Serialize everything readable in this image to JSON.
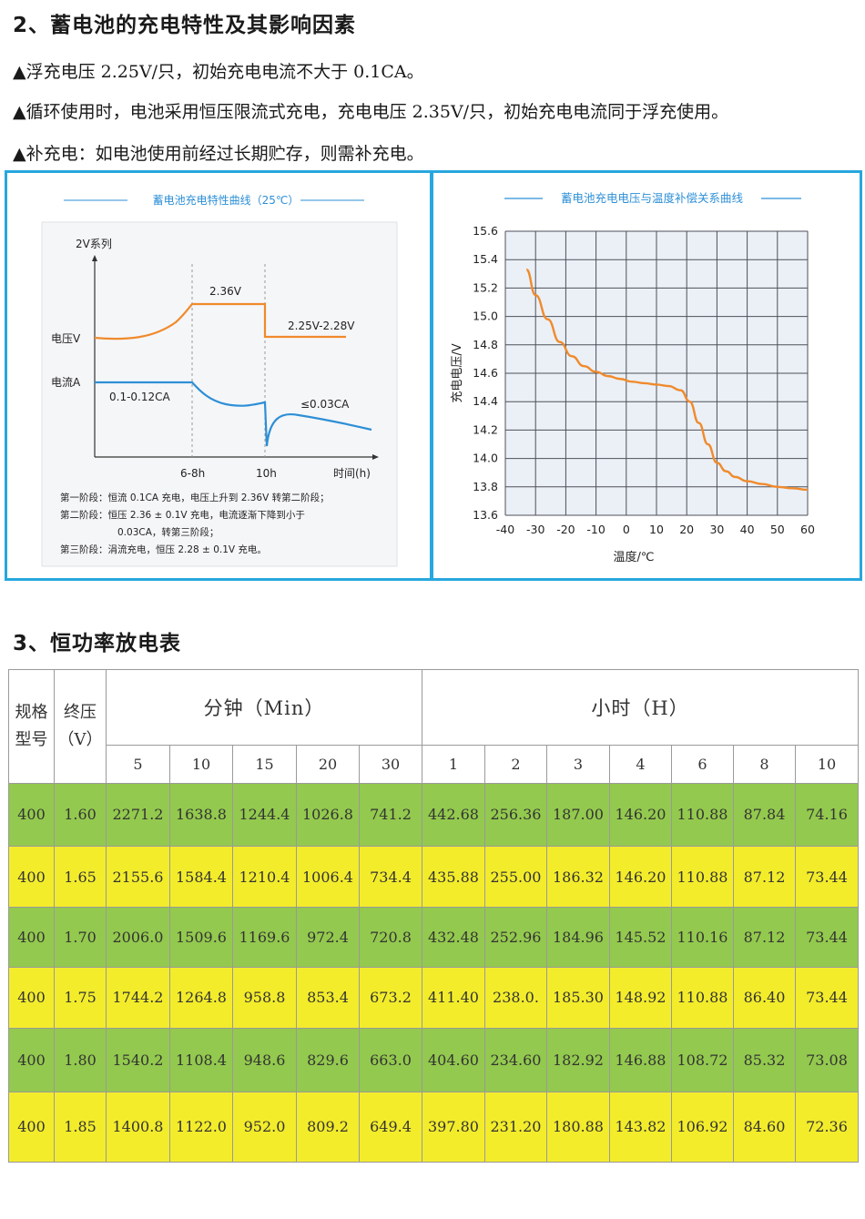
{
  "section2": {
    "heading": "2、蓄电池的充电特性及其影响因素",
    "bullets": [
      "▲浮充电压 2.25V/只，初始充电电流不大于 0.1CA。",
      "▲循环使用时，电池采用恒压限流式充电，充电电压 2.35V/只，初始充电电流同于浮充使用。",
      "▲补充电：如电池使用前经过长期贮存，则需补充电。"
    ]
  },
  "charge_chart": {
    "title": "蓄电池充电特性曲线（25℃）",
    "series_label": "2V系列",
    "voltage_label": "电压V",
    "current_label": "电流A",
    "x_label": "时间(h)",
    "x_ticks": [
      "6-8h",
      "10h"
    ],
    "annotations": {
      "v_stage2": "2.36V",
      "v_stage3": "2.25V-2.28V",
      "i_stage1": "0.1-0.12CA",
      "i_stage3": "≤0.03CA"
    },
    "notes": [
      "第一阶段：恒流 0.1CA 充电，电压上升到 2.36V 转第二阶段；",
      "第二阶段：恒压 2.36 ± 0.1V 充电，电流逐渐下降到小于",
      "0.03CA，转第三阶段；",
      "第三阶段：涓流充电，恒压 2.28 ± 0.1V 充电。"
    ],
    "colors": {
      "voltage": "#f08a2c",
      "current": "#2d8fd6"
    }
  },
  "chart_data": {
    "type": "line",
    "title": "蓄电池充电电压与温度补偿关系曲线",
    "xlabel": "温度/℃",
    "ylabel": "充电电压/V",
    "xlim": [
      -40,
      60
    ],
    "ylim": [
      13.6,
      15.6
    ],
    "x_ticks": [
      -40,
      -30,
      -20,
      -10,
      0,
      10,
      20,
      30,
      40,
      50,
      60
    ],
    "y_ticks": [
      "13.6",
      "13.8",
      "14.0",
      "14.2",
      "14.4",
      "14.6",
      "14.8",
      "15.0",
      "15.2",
      "15.4",
      "15.6"
    ],
    "grid": true,
    "color": "#f08a2c",
    "x": [
      -33,
      -30,
      -26,
      -22,
      -18,
      -14,
      -10,
      -6,
      -2,
      2,
      6,
      10,
      14,
      18,
      21,
      24,
      27,
      30,
      33,
      36,
      40,
      45,
      50,
      55,
      60
    ],
    "y": [
      15.33,
      15.15,
      14.98,
      14.82,
      14.72,
      14.65,
      14.61,
      14.58,
      14.56,
      14.54,
      14.53,
      14.52,
      14.51,
      14.48,
      14.4,
      14.25,
      14.1,
      13.97,
      13.91,
      13.87,
      13.84,
      13.82,
      13.8,
      13.79,
      13.78
    ]
  },
  "section3": {
    "heading": "3、恒功率放电表",
    "table": {
      "col_model": "规格型号",
      "col_voltage": "终压（V）",
      "group_min": "分钟（Min）",
      "group_hour": "小时（H）",
      "min_cols": [
        "5",
        "10",
        "15",
        "20",
        "30"
      ],
      "hour_cols": [
        "1",
        "2",
        "3",
        "4",
        "6",
        "8",
        "10"
      ],
      "row_colors": {
        "green": "#93c94e",
        "yellow": "#f3ec2b"
      },
      "rows": [
        [
          "400",
          "1.60",
          "2271.2",
          "1638.8",
          "1244.4",
          "1026.8",
          "741.2",
          "442.68",
          "256.36",
          "187.00",
          "146.20",
          "110.88",
          "87.84",
          "74.16"
        ],
        [
          "400",
          "1.65",
          "2155.6",
          "1584.4",
          "1210.4",
          "1006.4",
          "734.4",
          "435.88",
          "255.00",
          "186.32",
          "146.20",
          "110.88",
          "87.12",
          "73.44"
        ],
        [
          "400",
          "1.70",
          "2006.0",
          "1509.6",
          "1169.6",
          "972.4",
          "720.8",
          "432.48",
          "252.96",
          "184.96",
          "145.52",
          "110.16",
          "87.12",
          "73.44"
        ],
        [
          "400",
          "1.75",
          "1744.2",
          "1264.8",
          "958.8",
          "853.4",
          "673.2",
          "411.40",
          "238.0.",
          "185.30",
          "148.92",
          "110.88",
          "86.40",
          "73.44"
        ],
        [
          "400",
          "1.80",
          "1540.2",
          "1108.4",
          "948.6",
          "829.6",
          "663.0",
          "404.60",
          "234.60",
          "182.92",
          "146.88",
          "108.72",
          "85.32",
          "73.08"
        ],
        [
          "400",
          "1.85",
          "1400.8",
          "1122.0",
          "952.0",
          "809.2",
          "649.4",
          "397.80",
          "231.20",
          "180.88",
          "143.82",
          "106.92",
          "84.60",
          "72.36"
        ]
      ]
    }
  }
}
